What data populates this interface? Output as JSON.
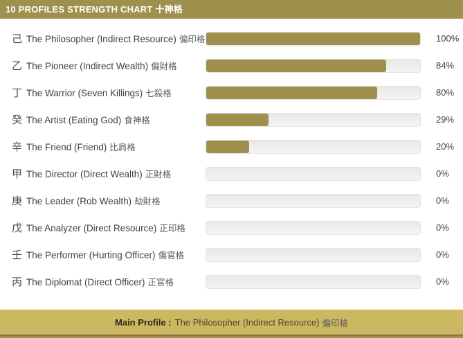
{
  "header": {
    "title_en": "10 PROFILES STRENGTH CHART",
    "title_cn": "十神格"
  },
  "rows": [
    {
      "stem": "己",
      "name": "The Philosopher (Indirect Resource)",
      "name_cn": "偏印格",
      "percent": 100,
      "percent_label": "100%"
    },
    {
      "stem": "乙",
      "name": "The Pioneer (Indirect Wealth)",
      "name_cn": "偏財格",
      "percent": 84,
      "percent_label": "84%"
    },
    {
      "stem": "丁",
      "name": "The Warrior (Seven Killings)",
      "name_cn": "七殺格",
      "percent": 80,
      "percent_label": "80%"
    },
    {
      "stem": "癸",
      "name": "The Artist (Eating God)",
      "name_cn": "食神格",
      "percent": 29,
      "percent_label": "29%"
    },
    {
      "stem": "辛",
      "name": "The Friend (Friend)",
      "name_cn": "比肩格",
      "percent": 20,
      "percent_label": "20%"
    },
    {
      "stem": "甲",
      "name": "The Director (Direct Wealth)",
      "name_cn": "正財格",
      "percent": 0,
      "percent_label": "0%"
    },
    {
      "stem": "庚",
      "name": "The Leader (Rob Wealth)",
      "name_cn": "劫財格",
      "percent": 0,
      "percent_label": "0%"
    },
    {
      "stem": "戊",
      "name": "The Analyzer (Direct Resource)",
      "name_cn": "正印格",
      "percent": 0,
      "percent_label": "0%"
    },
    {
      "stem": "壬",
      "name": "The Performer (Hurting Officer)",
      "name_cn": "傷官格",
      "percent": 0,
      "percent_label": "0%"
    },
    {
      "stem": "丙",
      "name": "The Diplomat (Direct Officer)",
      "name_cn": "正官格",
      "percent": 0,
      "percent_label": "0%"
    }
  ],
  "footer": {
    "label": "Main Profile :",
    "value_en": "The Philosopher (Indirect Resource)",
    "value_cn": "偏印格"
  },
  "colors": {
    "accent_olive": "#a0904e",
    "footer_gold": "#cdb862",
    "track_gray": "#efeeec",
    "bottom_line": "#857639",
    "bottom_strip": "#a3924c",
    "text": "#3e3e3e",
    "header_text": "#ffffff"
  },
  "chart_data": {
    "type": "bar",
    "orientation": "horizontal",
    "title": "10 PROFILES STRENGTH CHART 十神格",
    "categories": [
      "己 The Philosopher (Indirect Resource) 偏印格",
      "乙 The Pioneer (Indirect Wealth) 偏財格",
      "丁 The Warrior (Seven Killings) 七殺格",
      "癸 The Artist (Eating God) 食神格",
      "辛 The Friend (Friend) 比肩格",
      "甲 The Director (Direct Wealth) 正財格",
      "庚 The Leader (Rob Wealth) 劫財格",
      "戊 The Analyzer (Direct Resource) 正印格",
      "壬 The Performer (Hurting Officer) 傷官格",
      "丙 The Diplomat (Direct Officer) 正官格"
    ],
    "values": [
      100,
      84,
      80,
      29,
      20,
      0,
      0,
      0,
      0,
      0
    ],
    "value_format": "percent",
    "xlim": [
      0,
      100
    ],
    "bar_color": "#a0904e",
    "annotation": "Main Profile : The Philosopher (Indirect Resource) 偏印格",
    "grid": false,
    "legend": false
  }
}
